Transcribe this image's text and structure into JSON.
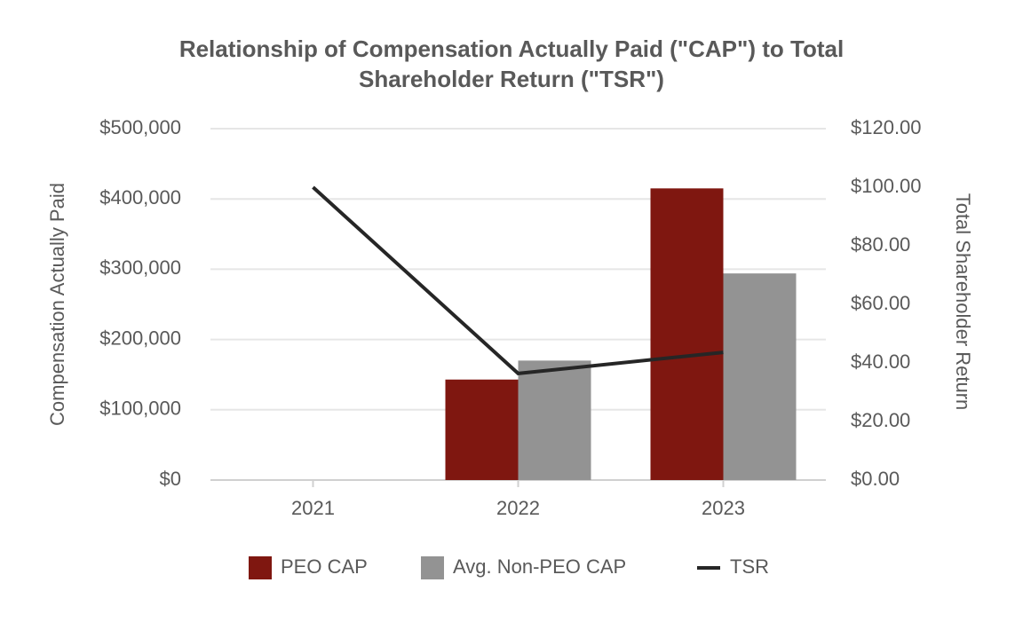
{
  "chart_data": {
    "type": "bar-line",
    "title": "Relationship of Compensation Actually Paid (\"CAP\") to Total Shareholder Return (\"TSR\")",
    "y_label": "Compensation Actually Paid",
    "y2_label": "Total Shareholder Return",
    "categories": [
      "2021",
      "2022",
      "2023"
    ],
    "series": [
      {
        "name": "PEO CAP",
        "type": "bar",
        "color": "#7f1710",
        "values": [
          null,
          143000,
          415000
        ]
      },
      {
        "name": "Avg. Non-PEO CAP",
        "type": "bar",
        "color": "#939393",
        "values": [
          null,
          170000,
          294000
        ]
      },
      {
        "name": "TSR",
        "type": "line",
        "axis": "y2",
        "color": "#262626",
        "values": [
          100,
          36.4,
          43.6
        ]
      }
    ],
    "ylim": [
      0,
      500000
    ],
    "yticks": [
      {
        "value": 0,
        "label": "$0"
      },
      {
        "value": 100000,
        "label": "$100,000"
      },
      {
        "value": 200000,
        "label": "$200,000"
      },
      {
        "value": 300000,
        "label": "$300,000"
      },
      {
        "value": 400000,
        "label": "$400,000"
      },
      {
        "value": 500000,
        "label": "$500,000"
      }
    ],
    "y2lim": [
      0,
      120
    ],
    "y2ticks": [
      {
        "value": 0,
        "label": "$0.00"
      },
      {
        "value": 20,
        "label": "$20.00"
      },
      {
        "value": 40,
        "label": "$40.00"
      },
      {
        "value": 60,
        "label": "$60.00"
      },
      {
        "value": 80,
        "label": "$80.00"
      },
      {
        "value": 100,
        "label": "$100.00"
      },
      {
        "value": 120,
        "label": "$120.00"
      }
    ],
    "grid": true,
    "legend": "bottom"
  }
}
